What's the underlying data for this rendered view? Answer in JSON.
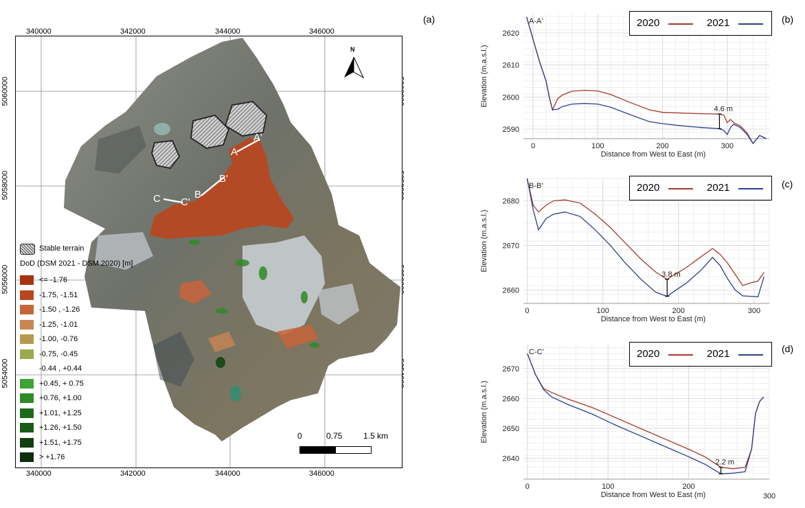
{
  "panel_labels": {
    "a": "(a)",
    "b": "(b)",
    "c": "(c)",
    "d": "(d)"
  },
  "map": {
    "top_ticks": [
      "340000",
      "342000",
      "344000",
      "346000"
    ],
    "bottom_ticks": [
      "340000",
      "342000",
      "344000",
      "346000"
    ],
    "left_ticks": [
      "5060000",
      "5058000",
      "5056000",
      "5054000"
    ],
    "right_ticks": [
      "5060000",
      "5058000",
      "5056000",
      "5054000"
    ],
    "north_label": "N",
    "section_labels": [
      "A",
      "A'",
      "B",
      "B'",
      "C",
      "C'"
    ],
    "scalebar": {
      "labels": [
        "0",
        "0.75",
        "1.5 km"
      ]
    },
    "legend": {
      "stable_label": "Stable terrain",
      "title": "DoD (DSM 2021 - DSM 2020) [m]",
      "classes": [
        {
          "label": "<= -1.76",
          "color": "#a8320e"
        },
        {
          "label": "-1.75, -1.51",
          "color": "#b8471f"
        },
        {
          "label": "-1.50 , -1.26",
          "color": "#c8643a"
        },
        {
          "label": "-1.25, -1.01",
          "color": "#c98552"
        },
        {
          "label": "-1.00, -0.76",
          "color": "#b5994f"
        },
        {
          "label": "-0.75,  -0.45",
          "color": "#9aaa4c"
        },
        {
          "label": "-0.44 , +0.44",
          "color": "#ffffff"
        },
        {
          "label": "+0.45, + 0.75",
          "color": "#3fa235"
        },
        {
          "label": "+0.76, +1.00",
          "color": "#2f8a28"
        },
        {
          "label": "+1.01, +1.25",
          "color": "#1e6a1c"
        },
        {
          "label": "+1.26, +1.50",
          "color": "#195a17"
        },
        {
          "label": "+1.51, +1.75",
          "color": "#123f10"
        },
        {
          "label": "> +1.76",
          "color": "#0d2e0c"
        }
      ]
    }
  },
  "chart_data": [
    {
      "type": "line",
      "title": "A-A'",
      "xlabel": "Distance from West to East (m)",
      "ylabel": "Elevation (m.a.s.l.)",
      "xlim": [
        -15,
        365
      ],
      "ylim": [
        2587,
        2626
      ],
      "xticks": [
        0,
        100,
        200,
        300
      ],
      "yticks": [
        2590,
        2600,
        2610,
        2620
      ],
      "annotation": {
        "text": "4.6 m",
        "x": 288,
        "y_top": 2594.7,
        "y_bottom": 2590.1
      },
      "series": [
        {
          "name": "2020",
          "color": "#a33a2a",
          "x": [
            -10,
            0,
            10,
            20,
            25,
            30,
            38,
            45,
            60,
            80,
            100,
            120,
            150,
            180,
            200,
            230,
            260,
            288,
            295,
            300,
            305,
            310,
            320,
            330,
            340,
            350,
            360
          ],
          "y": [
            2625,
            2618,
            2611,
            2605,
            2600,
            2596,
            2599.5,
            2600.6,
            2601.8,
            2602.1,
            2601.9,
            2600.8,
            2598.3,
            2596,
            2595.2,
            2595,
            2594.8,
            2594.7,
            2594.3,
            2592,
            2593,
            2592,
            2591,
            2589,
            2585.5,
            2588,
            2587
          ]
        },
        {
          "name": "2021",
          "color": "#2a3f8f",
          "x": [
            -10,
            0,
            10,
            20,
            25,
            30,
            38,
            45,
            60,
            80,
            100,
            120,
            150,
            180,
            200,
            230,
            260,
            288,
            295,
            300,
            305,
            310,
            320,
            330,
            340,
            350,
            360
          ],
          "y": [
            2625,
            2618,
            2611,
            2605,
            2600,
            2596,
            2596.2,
            2597,
            2597.8,
            2598,
            2597.8,
            2596.8,
            2594.5,
            2592.3,
            2591.7,
            2591,
            2590.5,
            2590.1,
            2589.5,
            2588.3,
            2590.5,
            2591.5,
            2590.5,
            2588.5,
            2585.5,
            2588,
            2587
          ]
        }
      ]
    },
    {
      "type": "line",
      "title": "B-B'",
      "xlabel": "Distance from West to East (m)",
      "ylabel": "Elevation (m.a.s.l.)",
      "xlim": [
        -5,
        320
      ],
      "ylim": [
        2657,
        2685
      ],
      "xticks": [
        0,
        100,
        200,
        300
      ],
      "yticks": [
        2660,
        2670,
        2680
      ],
      "annotation": {
        "text": "3.8 m",
        "x": 185,
        "y_top": 2662.4,
        "y_bottom": 2658.6
      },
      "series": [
        {
          "name": "2020",
          "color": "#a33a2a",
          "x": [
            0,
            8,
            15,
            25,
            35,
            50,
            70,
            90,
            110,
            130,
            150,
            170,
            185,
            195,
            210,
            230,
            245,
            255,
            265,
            275,
            285,
            295,
            305,
            313
          ],
          "y": [
            2685,
            2679,
            2677.5,
            2679,
            2680,
            2680.2,
            2679.5,
            2677,
            2674,
            2670.5,
            2667,
            2664,
            2662.4,
            2663.5,
            2665,
            2667.5,
            2669.3,
            2668,
            2666,
            2663.5,
            2661,
            2661.6,
            2662,
            2664
          ]
        },
        {
          "name": "2021",
          "color": "#2a3f8f",
          "x": [
            0,
            8,
            15,
            25,
            35,
            50,
            70,
            90,
            110,
            130,
            150,
            170,
            185,
            195,
            210,
            230,
            245,
            255,
            265,
            275,
            285,
            295,
            305,
            313
          ],
          "y": [
            2685,
            2678,
            2673.5,
            2676,
            2677,
            2677.5,
            2676.5,
            2673.5,
            2670,
            2666,
            2662.5,
            2659.5,
            2658.6,
            2659.8,
            2661.5,
            2664.5,
            2667.3,
            2665.5,
            2662.5,
            2660,
            2658.7,
            2658.6,
            2658.5,
            2663
          ]
        }
      ]
    },
    {
      "type": "line",
      "title": "C-C'",
      "xlabel": "Distance from West to East (m)",
      "ylabel": "Elevation (m.a.s.l.)",
      "xlim": [
        -5,
        300
      ],
      "ylim": [
        2633,
        2678
      ],
      "xticks": [
        0,
        100,
        200
      ],
      "xticks_extra": [
        300
      ],
      "yticks": [
        2640,
        2650,
        2660,
        2670
      ],
      "annotation": {
        "text": "2.2 m",
        "x": 240,
        "y_top": 2637,
        "y_bottom": 2634.8
      },
      "series": [
        {
          "name": "2020",
          "color": "#a33a2a",
          "x": [
            0,
            10,
            20,
            30,
            50,
            80,
            110,
            140,
            170,
            200,
            220,
            240,
            255,
            270,
            278,
            283,
            288,
            293
          ],
          "y": [
            2675,
            2668,
            2663.3,
            2662,
            2659.8,
            2657,
            2653.5,
            2650,
            2646.5,
            2643,
            2640.5,
            2637,
            2636.5,
            2637,
            2643,
            2655,
            2659,
            2660.5
          ]
        },
        {
          "name": "2021",
          "color": "#2a3f8f",
          "x": [
            0,
            10,
            20,
            30,
            50,
            80,
            110,
            140,
            170,
            200,
            220,
            240,
            255,
            270,
            278,
            283,
            288,
            293
          ],
          "y": [
            2675,
            2668,
            2663,
            2660.5,
            2658,
            2654.8,
            2651,
            2647.5,
            2644,
            2640.5,
            2638,
            2634.8,
            2635,
            2635.5,
            2643,
            2655,
            2659,
            2660.5
          ]
        }
      ]
    }
  ]
}
